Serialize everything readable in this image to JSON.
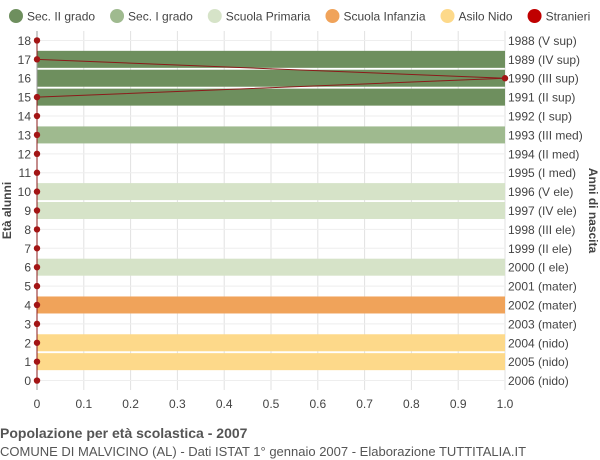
{
  "chart_data": {
    "type": "bar",
    "orientation": "horizontal",
    "title": "Popolazione per età scolastica - 2007",
    "subtitle": "COMUNE DI MALVICINO (AL) - Dati ISTAT 1° gennaio 2007 - Elaborazione TUTTITALIA.IT",
    "ylabel_left": "Età alunni",
    "ylabel_right": "Anni di nascita",
    "xlim": [
      0,
      1.0
    ],
    "xticks": [
      "0",
      "0.1",
      "0.2",
      "0.3",
      "0.4",
      "0.5",
      "0.6",
      "0.7",
      "0.8",
      "0.9",
      "1.0"
    ],
    "grid": true,
    "legend_position": "top",
    "legend": [
      {
        "label": "Sec. II grado",
        "color": "#6e8f5e",
        "marker": "circle"
      },
      {
        "label": "Sec. I grado",
        "color": "#9fba8f",
        "marker": "circle"
      },
      {
        "label": "Scuola Primaria",
        "color": "#d6e3c8",
        "marker": "circle"
      },
      {
        "label": "Scuola Infanzia",
        "color": "#f0a35a",
        "marker": "circle"
      },
      {
        "label": "Asilo Nido",
        "color": "#fdd98a",
        "marker": "circle"
      },
      {
        "label": "Stranieri",
        "color": "#c00000",
        "marker": "circle"
      }
    ],
    "ages": [
      18,
      17,
      16,
      15,
      14,
      13,
      12,
      11,
      10,
      9,
      8,
      7,
      6,
      5,
      4,
      3,
      2,
      1,
      0
    ],
    "birth_years": [
      "1988 (V sup)",
      "1989 (IV sup)",
      "1990 (III sup)",
      "1991 (II sup)",
      "1992 (I sup)",
      "1993 (III med)",
      "1994 (II med)",
      "1995 (I med)",
      "1996 (V ele)",
      "1997 (IV ele)",
      "1998 (III ele)",
      "1999 (II ele)",
      "2000 (I ele)",
      "2001 (mater)",
      "2002 (mater)",
      "2003 (mater)",
      "2004 (nido)",
      "2005 (nido)",
      "2006 (nido)"
    ],
    "values": [
      0,
      1,
      1,
      1,
      0,
      1,
      0,
      0,
      1,
      1,
      0,
      0,
      1,
      0,
      1,
      0,
      1,
      1,
      0
    ],
    "categories": [
      "Sec. II grado",
      "Sec. II grado",
      "Sec. II grado",
      "Sec. II grado",
      "Sec. II grado",
      "Sec. I grado",
      "Sec. I grado",
      "Sec. I grado",
      "Scuola Primaria",
      "Scuola Primaria",
      "Scuola Primaria",
      "Scuola Primaria",
      "Scuola Primaria",
      "Scuola Infanzia",
      "Scuola Infanzia",
      "Scuola Infanzia",
      "Asilo Nido",
      "Asilo Nido",
      "Asilo Nido"
    ],
    "stranieri": [
      0,
      0,
      1,
      0,
      0,
      0,
      0,
      0,
      0,
      0,
      0,
      0,
      0,
      0,
      0,
      0,
      0,
      0,
      0
    ]
  }
}
